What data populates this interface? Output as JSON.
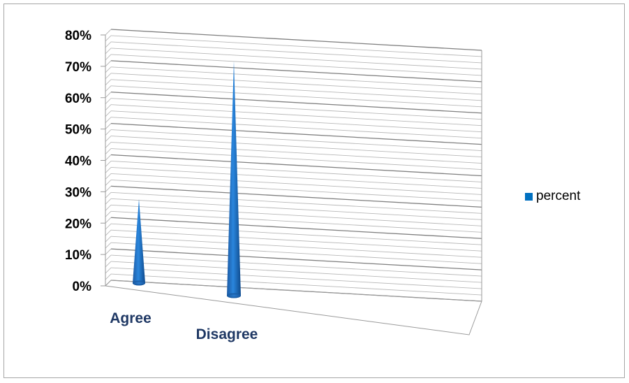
{
  "chart_data": {
    "type": "bar",
    "shape": "cone",
    "view": "3d",
    "categories": [
      "Agree",
      "Disagree"
    ],
    "series": [
      {
        "name": "percent",
        "values": [
          0.25,
          0.73
        ],
        "color": "#0070c0"
      }
    ],
    "ylim": [
      0,
      0.8
    ],
    "ytick_values": [
      0,
      0.1,
      0.2,
      0.3,
      0.4,
      0.5,
      0.6,
      0.7,
      0.8
    ],
    "ytick_labels": [
      "0%",
      "10%",
      "20%",
      "30%",
      "40%",
      "50%",
      "60%",
      "70%",
      "80%"
    ],
    "title": "",
    "xlabel": "",
    "ylabel": "",
    "grid": true,
    "legend_position": "right"
  },
  "legend": {
    "label": "percent"
  }
}
